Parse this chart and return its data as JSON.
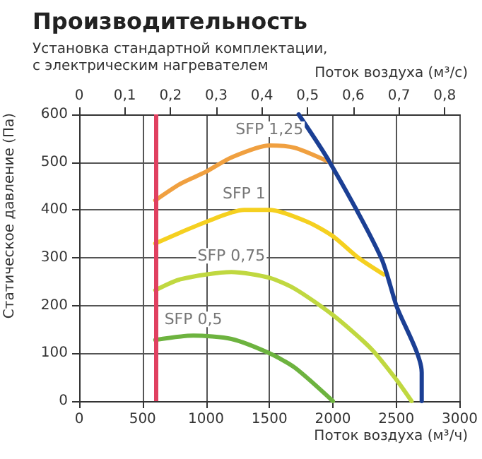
{
  "chart_data": {
    "type": "line",
    "title": "Производительность",
    "subtitle": "Установка стандартной комплектации,\nс электрическим нагревателем",
    "xlabel": "Поток воздуха (м³/ч)",
    "x2label": "Поток воздуха (м³/с)",
    "ylabel": "Статическое давление (Па)",
    "xlim": [
      0,
      3000
    ],
    "xticks": [
      0,
      500,
      1000,
      1500,
      2000,
      2500,
      3000
    ],
    "x2lim": [
      0,
      0.833
    ],
    "x2ticks": [
      {
        "value": 0,
        "label": "0"
      },
      {
        "value": 0.1,
        "label": "0,1"
      },
      {
        "value": 0.2,
        "label": "0,2"
      },
      {
        "value": 0.3,
        "label": "0,3"
      },
      {
        "value": 0.4,
        "label": "0,4"
      },
      {
        "value": 0.5,
        "label": "0,5"
      },
      {
        "value": 0.6,
        "label": "0,6"
      },
      {
        "value": 0.7,
        "label": "0,7"
      },
      {
        "value": 0.8,
        "label": "0,8"
      }
    ],
    "ylim": [
      0,
      600
    ],
    "yticks": [
      0,
      100,
      200,
      300,
      400,
      500,
      600
    ],
    "grid": true,
    "marker": "none",
    "line_style": "solid",
    "series": [
      {
        "name": "SFP 1,25",
        "color": "#f0a040",
        "x": [
          600,
          800,
          1000,
          1200,
          1500,
          1700,
          1975
        ],
        "values": [
          420,
          455,
          480,
          510,
          535,
          530,
          500
        ]
      },
      {
        "name": "SFP 1",
        "color": "#f5d020",
        "x": [
          600,
          1000,
          1300,
          1500,
          1800,
          2000,
          2200,
          2400
        ],
        "values": [
          330,
          375,
          400,
          400,
          375,
          345,
          300,
          265
        ]
      },
      {
        "name": "SFP 0,75",
        "color": "#c0d840",
        "x": [
          600,
          800,
          1200,
          1500,
          1700,
          2000,
          2300,
          2500,
          2620
        ],
        "values": [
          232,
          255,
          270,
          258,
          235,
          180,
          110,
          45,
          0
        ]
      },
      {
        "name": "SFP 0,5",
        "color": "#6db33f",
        "x": [
          600,
          900,
          1200,
          1500,
          1700,
          2000
        ],
        "values": [
          128,
          137,
          130,
          100,
          70,
          0
        ]
      },
      {
        "color": "#1b3f94",
        "x": [
          1730,
          1975,
          2380,
          2500,
          2700,
          2700
        ],
        "values": [
          600,
          500,
          300,
          200,
          60,
          0
        ]
      }
    ],
    "ref_lines": [
      {
        "axis": "x",
        "value": 600,
        "color": "#e04060"
      }
    ]
  }
}
